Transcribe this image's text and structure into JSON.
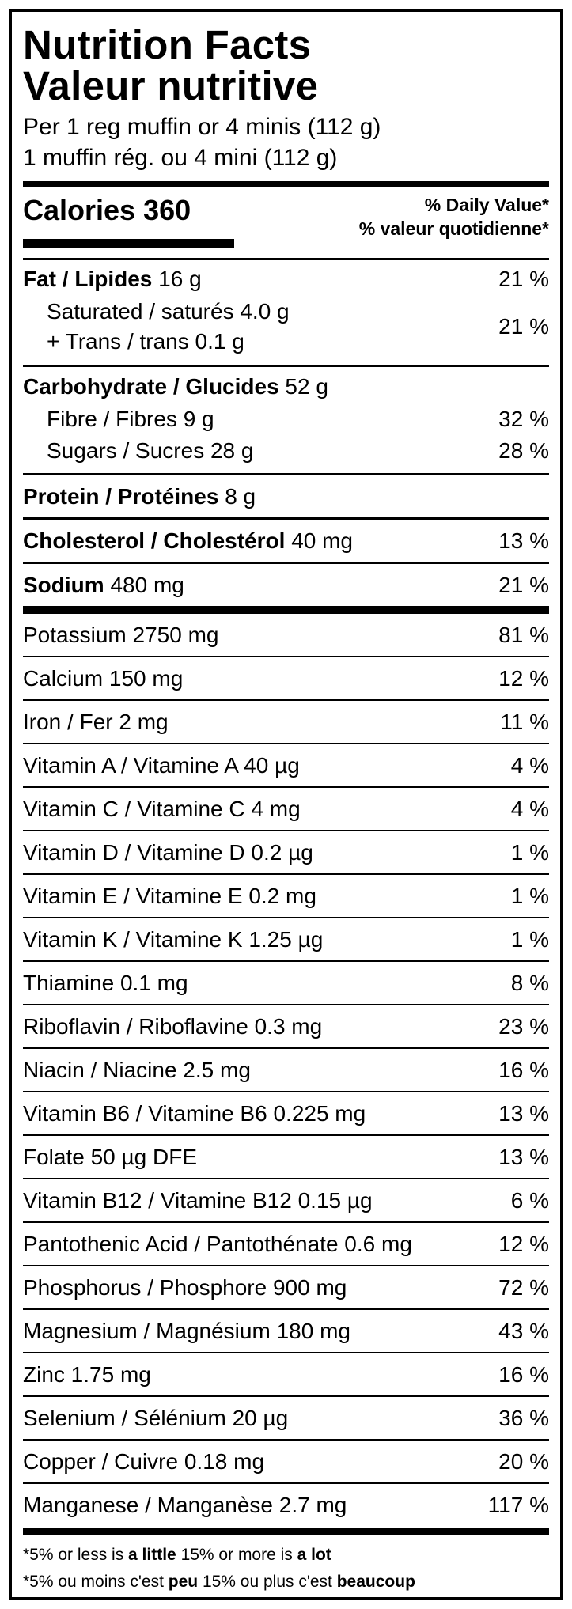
{
  "title_en": "Nutrition Facts",
  "title_fr": "Valeur nutritive",
  "serving_en": "Per 1 reg muffin or 4 minis (112 g)",
  "serving_fr": "1 muffin rég. ou 4 mini (112 g)",
  "calories_label": "Calories 360",
  "dv_en": "% Daily Value*",
  "dv_fr": "% valeur quotidienne*",
  "fat": {
    "label": "Fat / Lipides",
    "amount": "16 g",
    "pct": "21 %"
  },
  "saturated": {
    "line1": "Saturated / saturés 4.0 g",
    "line2": "+ Trans / trans 0.1 g",
    "pct": "21 %"
  },
  "carbohydrate": {
    "label": "Carbohydrate / Glucides",
    "amount": "52 g"
  },
  "fibre": {
    "label": "Fibre / Fibres 9 g",
    "pct": "32 %"
  },
  "sugars": {
    "label": "Sugars / Sucres 28 g",
    "pct": "28 %"
  },
  "protein": {
    "label": "Protein / Protéines",
    "amount": "8 g"
  },
  "cholesterol": {
    "label": "Cholesterol / Cholestérol",
    "amount": "40 mg",
    "pct": "13 %"
  },
  "sodium": {
    "label": "Sodium",
    "amount": "480 mg",
    "pct": "21 %"
  },
  "vitamins": [
    {
      "label": "Potassium 2750 mg",
      "pct": "81 %"
    },
    {
      "label": "Calcium 150 mg",
      "pct": "12 %"
    },
    {
      "label": "Iron / Fer 2 mg",
      "pct": "11 %"
    },
    {
      "label": "Vitamin A / Vitamine A 40 µg",
      "pct": "4 %"
    },
    {
      "label": "Vitamin C / Vitamine C 4 mg",
      "pct": "4 %"
    },
    {
      "label": "Vitamin D / Vitamine D 0.2 µg",
      "pct": "1 %"
    },
    {
      "label": "Vitamin E / Vitamine E 0.2 mg",
      "pct": "1 %"
    },
    {
      "label": "Vitamin K / Vitamine K 1.25 µg",
      "pct": "1 %"
    },
    {
      "label": "Thiamine 0.1 mg",
      "pct": "8 %"
    },
    {
      "label": "Riboflavin / Riboflavine 0.3 mg",
      "pct": "23 %"
    },
    {
      "label": "Niacin / Niacine 2.5 mg",
      "pct": "16 %"
    },
    {
      "label": "Vitamin B6 / Vitamine B6 0.225 mg",
      "pct": "13 %"
    },
    {
      "label": "Folate 50 µg DFE",
      "pct": "13 %"
    },
    {
      "label": "Vitamin B12 / Vitamine B12 0.15 µg",
      "pct": "6 %"
    },
    {
      "label": "Pantothenic Acid / Pantothénate 0.6 mg",
      "pct": "12 %"
    },
    {
      "label": "Phosphorus / Phosphore 900 mg",
      "pct": "72 %"
    },
    {
      "label": "Magnesium / Magnésium 180 mg",
      "pct": "43 %"
    },
    {
      "label": "Zinc 1.75 mg",
      "pct": "16 %"
    },
    {
      "label": "Selenium / Sélénium 20 µg",
      "pct": "36 %"
    },
    {
      "label": "Copper / Cuivre 0.18 mg",
      "pct": "20 %"
    },
    {
      "label": "Manganese / Manganèse 2.7 mg",
      "pct": "117 %"
    }
  ],
  "footnote_en": {
    "a": "*5% or less is ",
    "b": "a little",
    "c": " 15% or more is ",
    "d": "a lot"
  },
  "footnote_fr": {
    "a": "*5% ou moins c'est ",
    "b": "peu",
    "c": " 15% ou plus c'est ",
    "d": "beaucoup"
  }
}
